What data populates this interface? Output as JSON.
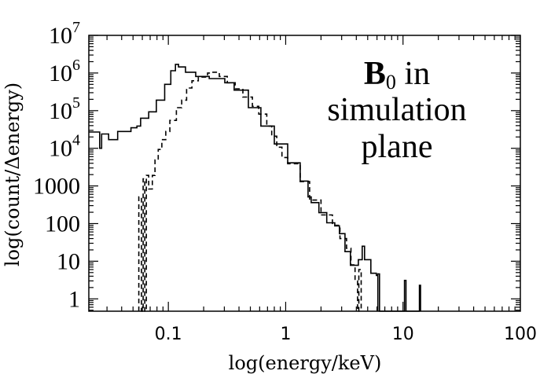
{
  "chart_data": {
    "type": "line",
    "title": "",
    "xlabel": "log(energy/keV)",
    "ylabel": "log(count/Δenergy)",
    "xscale": "log",
    "yscale": "log",
    "xlim": [
      0.021,
      100
    ],
    "ylim": [
      0.47,
      10000000
    ],
    "grid": false,
    "x_ticks": [
      {
        "value": 0.1,
        "label": "0.1"
      },
      {
        "value": 1,
        "label": "1"
      },
      {
        "value": 10,
        "label": "10"
      },
      {
        "value": 100,
        "label": "100"
      }
    ],
    "y_ticks": [
      {
        "value": 1,
        "label": "1",
        "exp": ""
      },
      {
        "value": 10,
        "label": "10",
        "exp": ""
      },
      {
        "value": 100,
        "label": "100",
        "exp": ""
      },
      {
        "value": 1000,
        "label": "1000",
        "exp": ""
      },
      {
        "value": 10000,
        "label": "10",
        "exp": "4"
      },
      {
        "value": 100000,
        "label": "10",
        "exp": "5"
      },
      {
        "value": 1000000,
        "label": "10",
        "exp": "6"
      },
      {
        "value": 10000000,
        "label": "10",
        "exp": "7"
      }
    ],
    "annotation": {
      "bold": "B",
      "sub": "0",
      "rest": " in",
      "line2": "simulation",
      "line3": "plane"
    },
    "series": [
      {
        "style": "solid",
        "color": "#000000",
        "points": [
          [
            0.021,
            27000
          ],
          [
            0.026,
            10000
          ],
          [
            0.027,
            24000
          ],
          [
            0.031,
            17000
          ],
          [
            0.037,
            28000
          ],
          [
            0.048,
            35000
          ],
          [
            0.054,
            39000
          ],
          [
            0.058,
            63000
          ],
          [
            0.068,
            93000
          ],
          [
            0.079,
            190000
          ],
          [
            0.093,
            500000
          ],
          [
            0.105,
            1150000
          ],
          [
            0.115,
            1700000
          ],
          [
            0.122,
            1450000
          ],
          [
            0.14,
            1050000
          ],
          [
            0.171,
            810000
          ],
          [
            0.223,
            710000
          ],
          [
            0.303,
            550000
          ],
          [
            0.364,
            350000
          ],
          [
            0.481,
            120000
          ],
          [
            0.615,
            39000
          ],
          [
            0.8,
            13000
          ],
          [
            1.04,
            4100
          ],
          [
            1.33,
            1350
          ],
          [
            1.55,
            510
          ],
          [
            1.65,
            360
          ],
          [
            1.92,
            195
          ],
          [
            2.24,
            105
          ],
          [
            2.62,
            87
          ],
          [
            2.87,
            54
          ],
          [
            3.2,
            18
          ],
          [
            3.56,
            7.8
          ],
          [
            4.16,
            11
          ],
          [
            4.49,
            25
          ],
          [
            4.7,
            11
          ],
          [
            5.32,
            4.8
          ],
          [
            5.93,
            4.2
          ],
          [
            6.1,
            0
          ],
          [
            6.1,
            4.6
          ],
          [
            6.3,
            0
          ],
          [
            10.3,
            0
          ],
          [
            10.3,
            3.1
          ],
          [
            10.6,
            0
          ],
          [
            13.8,
            0
          ],
          [
            13.8,
            2.3
          ],
          [
            14.1,
            0
          ]
        ]
      },
      {
        "style": "dashed",
        "color": "#000000",
        "points": [
          [
            0.056,
            0
          ],
          [
            0.056,
            510
          ],
          [
            0.059,
            0
          ],
          [
            0.061,
            1550
          ],
          [
            0.063,
            0
          ],
          [
            0.065,
            1900
          ],
          [
            0.068,
            830
          ],
          [
            0.073,
            1900
          ],
          [
            0.077,
            4900
          ],
          [
            0.082,
            9300
          ],
          [
            0.088,
            17000
          ],
          [
            0.095,
            28000
          ],
          [
            0.103,
            55000
          ],
          [
            0.117,
            120000
          ],
          [
            0.13,
            190000
          ],
          [
            0.143,
            400000
          ],
          [
            0.159,
            620000
          ],
          [
            0.18,
            780000
          ],
          [
            0.216,
            1000000
          ],
          [
            0.24,
            1050000
          ],
          [
            0.272,
            810000
          ],
          [
            0.318,
            550000
          ],
          [
            0.371,
            380000
          ],
          [
            0.432,
            230000
          ],
          [
            0.52,
            130000
          ],
          [
            0.59,
            81000
          ],
          [
            0.69,
            39000
          ],
          [
            0.76,
            21000
          ],
          [
            0.84,
            10700
          ],
          [
            0.93,
            5700
          ],
          [
            1.04,
            3900
          ],
          [
            1.33,
            1300
          ],
          [
            1.6,
            420
          ],
          [
            2.0,
            170
          ],
          [
            2.5,
            90
          ],
          [
            2.9,
            40
          ],
          [
            3.3,
            22
          ],
          [
            3.6,
            8
          ],
          [
            3.9,
            3
          ],
          [
            4.1,
            0
          ],
          [
            4.2,
            6
          ],
          [
            4.4,
            0
          ]
        ]
      }
    ]
  }
}
